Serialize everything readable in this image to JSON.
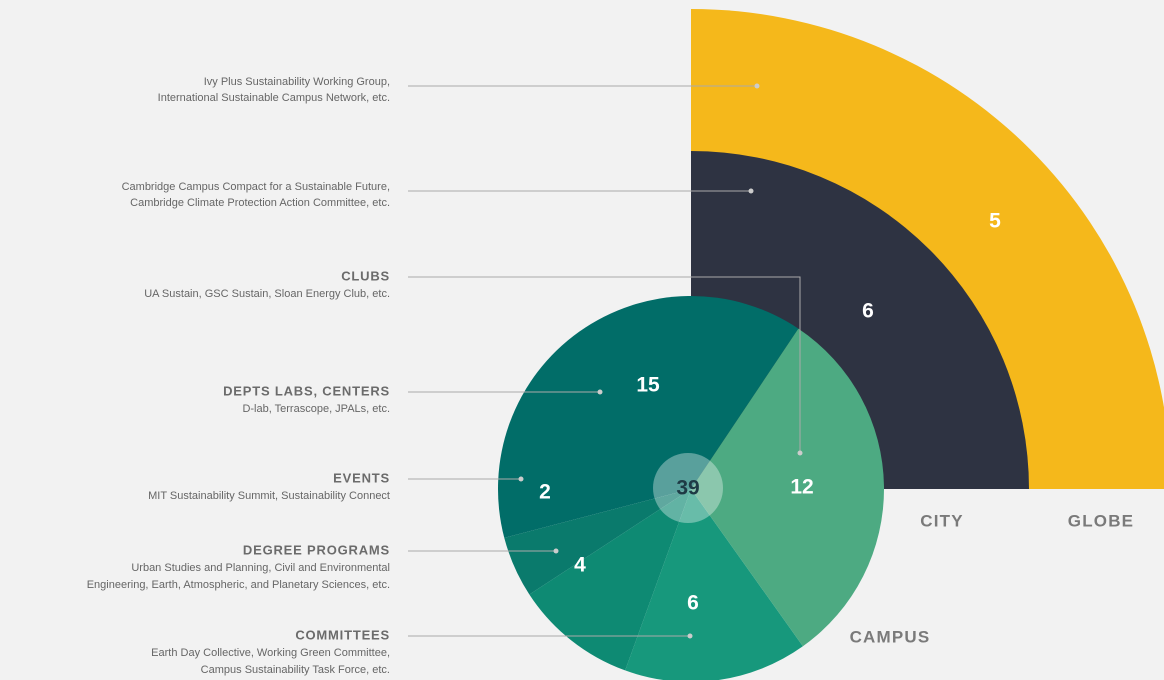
{
  "chart_data": {
    "type": "pie",
    "total": 39,
    "campus_label": "CAMPUS",
    "layers": [
      {
        "name": "GLOBE",
        "value": 5,
        "color": "#f5b81b",
        "description": [
          "Ivy Plus Sustainability Working Group,",
          "International Sustainable Campus Network, etc."
        ]
      },
      {
        "name": "CITY",
        "value": 6,
        "color": "#2e3342",
        "description": [
          "Cambridge Campus Compact for a Sustainable Future,",
          "Cambridge Climate Protection Action Committee, etc."
        ]
      }
    ],
    "groups": [
      {
        "title": "CLUBS",
        "description": [
          "UA Sustain, GSC Sustain, Sloan Energy Club, etc."
        ],
        "value": 12,
        "color": "#4daa82"
      },
      {
        "title": "DEPTS LABS, CENTERS",
        "description": [
          "D-lab, Terrascope, JPALs, etc."
        ],
        "value": 15,
        "color": "#016d68"
      },
      {
        "title": "EVENTS",
        "description": [
          "MIT Sustainability Summit, Sustainability Connect"
        ],
        "value": 2,
        "color": "#0a7a6c"
      },
      {
        "title": "DEGREE PROGRAMS",
        "description": [
          "Urban Studies and Planning, Civil and Environmental",
          "Engineering, Earth, Atmospheric, and Planetary Sciences, etc."
        ],
        "value": 4,
        "color": "#0e8a73"
      },
      {
        "title": "COMMITTEES",
        "description": [
          "Earth Day Collective, Working Green Committee,",
          "Campus Sustainability Task Force, etc."
        ],
        "value": 6,
        "color": "#17987c"
      }
    ]
  }
}
